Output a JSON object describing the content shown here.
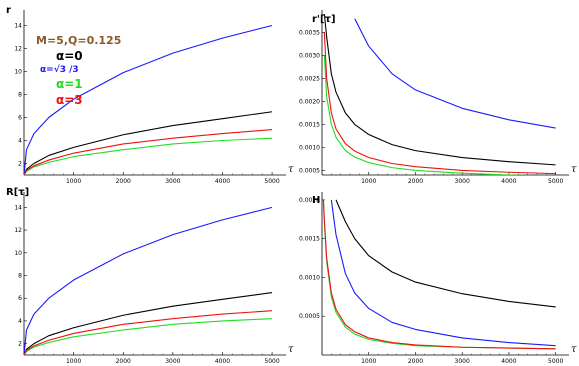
{
  "colors": {
    "alpha_0": "#000000",
    "alpha_sqrt3_over_3": "#1a1aff",
    "alpha_1": "#22dd22",
    "alpha_3": "#ee1111",
    "params_text": "#8a5a2b"
  },
  "legend": {
    "params": "M=5,Q=0.125",
    "alpha0": "α=0",
    "alpha_sqrt": "α=√3 /3",
    "alpha1": "α=1",
    "alpha3": "α=3"
  },
  "chart_data": [
    {
      "type": "line",
      "panel": "top-left",
      "ylabel": "r",
      "xlabel": "τ",
      "xlim": [
        0,
        5200
      ],
      "ylim": [
        1,
        15
      ],
      "xticks": [
        "1000",
        "2000",
        "3000",
        "4000",
        "5000"
      ],
      "yticks": [
        "2",
        "4",
        "6",
        "8",
        "10",
        "12",
        "14"
      ],
      "x": [
        0,
        50,
        200,
        500,
        1000,
        2000,
        3000,
        4000,
        5000
      ],
      "series": [
        {
          "name": "α=0",
          "values": [
            1.0,
            1.5,
            2.0,
            2.7,
            3.4,
            4.5,
            5.3,
            5.9,
            6.5
          ]
        },
        {
          "name": "α=√3 /3",
          "values": [
            1.0,
            3.2,
            4.6,
            6.0,
            7.6,
            9.9,
            11.6,
            12.9,
            14.0
          ]
        },
        {
          "name": "α=1",
          "values": [
            1.0,
            1.3,
            1.7,
            2.1,
            2.6,
            3.2,
            3.7,
            4.0,
            4.2
          ]
        },
        {
          "name": "α=3",
          "values": [
            1.0,
            1.4,
            1.8,
            2.3,
            2.9,
            3.7,
            4.2,
            4.6,
            4.95
          ]
        }
      ]
    },
    {
      "type": "line",
      "panel": "top-right",
      "ylabel": "r'[τ]",
      "xlabel": "τ",
      "xlim": [
        0,
        5200
      ],
      "ylim": [
        0.0004,
        0.0039
      ],
      "xticks": [
        "1000",
        "2000",
        "3000",
        "4000",
        "5000"
      ],
      "yticks": [
        "0.0005",
        "0.0010",
        "0.0015",
        "0.0020",
        "0.0025",
        "0.0030",
        "0.0035"
      ],
      "x": [
        50,
        100,
        200,
        300,
        500,
        700,
        1000,
        1500,
        2000,
        3000,
        4000,
        5000
      ],
      "series": [
        {
          "name": "α=0",
          "values": [
            0.0039,
            0.0034,
            0.0026,
            0.0022,
            0.00175,
            0.0015,
            0.00128,
            0.00106,
            0.00093,
            0.00078,
            0.00069,
            0.00062
          ]
        },
        {
          "name": "α=√3 /3",
          "values": [
            null,
            null,
            null,
            null,
            null,
            0.0038,
            0.0032,
            0.0026,
            0.00225,
            0.00185,
            0.0016,
            0.00142
          ]
        },
        {
          "name": "α=1",
          "values": [
            0.003,
            0.0021,
            0.0015,
            0.00122,
            0.00093,
            0.00079,
            0.00067,
            0.00056,
            0.0005,
            0.00044,
            0.0004,
            0.00037
          ]
        },
        {
          "name": "α=3",
          "values": [
            0.0035,
            0.0025,
            0.00175,
            0.0014,
            0.00108,
            0.00092,
            0.00078,
            0.00065,
            0.00058,
            0.0005,
            0.00046,
            0.00043
          ]
        }
      ]
    },
    {
      "type": "line",
      "panel": "bottom-left",
      "ylabel": "R[τ]",
      "xlabel": "τ",
      "xlim": [
        0,
        5200
      ],
      "ylim": [
        1,
        15
      ],
      "xticks": [
        "1000",
        "2000",
        "3000",
        "4000",
        "5000"
      ],
      "yticks": [
        "2",
        "4",
        "6",
        "8",
        "10",
        "12",
        "14"
      ],
      "x": [
        0,
        50,
        200,
        500,
        1000,
        2000,
        3000,
        4000,
        5000
      ],
      "series": [
        {
          "name": "α=0",
          "values": [
            1.0,
            1.5,
            2.0,
            2.7,
            3.4,
            4.5,
            5.3,
            5.9,
            6.5
          ]
        },
        {
          "name": "α=√3 /3",
          "values": [
            1.0,
            3.2,
            4.6,
            6.0,
            7.6,
            9.9,
            11.6,
            12.9,
            14.0
          ]
        },
        {
          "name": "α=1",
          "values": [
            1.0,
            1.3,
            1.7,
            2.1,
            2.6,
            3.2,
            3.7,
            4.0,
            4.2
          ]
        },
        {
          "name": "α=3",
          "values": [
            1.0,
            1.4,
            1.8,
            2.3,
            2.9,
            3.7,
            4.2,
            4.6,
            4.9
          ]
        }
      ]
    },
    {
      "type": "line",
      "panel": "bottom-right",
      "ylabel": "H",
      "xlabel": "τ",
      "xlim": [
        0,
        5200
      ],
      "ylim": [
        0.0,
        0.00205
      ],
      "xticks": [
        "1000",
        "2000",
        "3000",
        "4000",
        "5000"
      ],
      "yticks": [
        "0.0005",
        "0.0010",
        "0.0015",
        "0.0020"
      ],
      "x": [
        30,
        50,
        100,
        200,
        300,
        500,
        700,
        1000,
        1500,
        2000,
        3000,
        4000,
        5000
      ],
      "series": [
        {
          "name": "α=0",
          "values": [
            null,
            null,
            null,
            null,
            0.002,
            0.00172,
            0.0015,
            0.00128,
            0.00107,
            0.00094,
            0.00079,
            0.00069,
            0.00062
          ]
        },
        {
          "name": "α=√3 /3",
          "values": [
            null,
            null,
            null,
            0.002,
            0.00155,
            0.00105,
            0.0008,
            0.0006,
            0.00042,
            0.00033,
            0.00022,
            0.00016,
            0.00012
          ]
        },
        {
          "name": "α=1",
          "values": [
            0.002,
            0.00172,
            0.0012,
            0.00075,
            0.00055,
            0.00036,
            0.00027,
            0.0002,
            0.00015,
            0.00012,
            0.0001,
            9e-05,
            8e-05
          ]
        },
        {
          "name": "α=3",
          "values": [
            0.002,
            0.00175,
            0.00125,
            0.0008,
            0.00059,
            0.00039,
            0.0003,
            0.00022,
            0.00016,
            0.00013,
            0.0001,
            9e-05,
            8e-05
          ]
        }
      ]
    }
  ]
}
